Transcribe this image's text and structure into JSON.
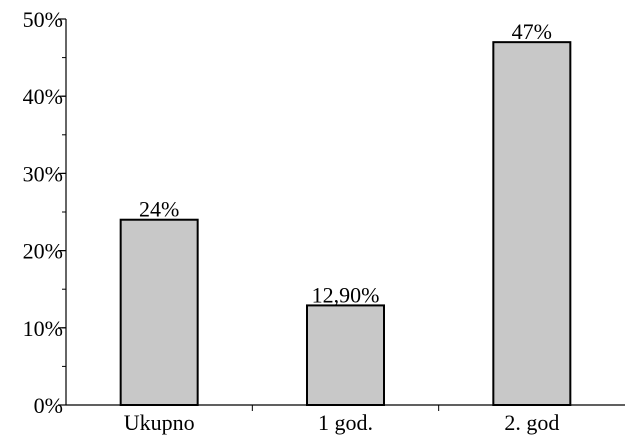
{
  "chart_data": {
    "type": "bar",
    "title": "",
    "xlabel": "",
    "ylabel": "",
    "categories": [
      "Ukupno",
      "1 god.",
      "2. god"
    ],
    "values": [
      24,
      12.9,
      47
    ],
    "data_labels": [
      "24%",
      "12,90%",
      "47%"
    ],
    "ylim": [
      0,
      50
    ],
    "y_major_ticks": [
      0,
      10,
      20,
      30,
      40,
      50
    ],
    "y_tick_labels": [
      "0%",
      "10%",
      "20%",
      "30%",
      "40%",
      "50%"
    ],
    "y_minor_step": 5,
    "grid": false,
    "legend": "none",
    "colors": {
      "bar_fill": "#c8c8c8",
      "bar_stroke": "#000000",
      "axis": "#000000"
    }
  }
}
